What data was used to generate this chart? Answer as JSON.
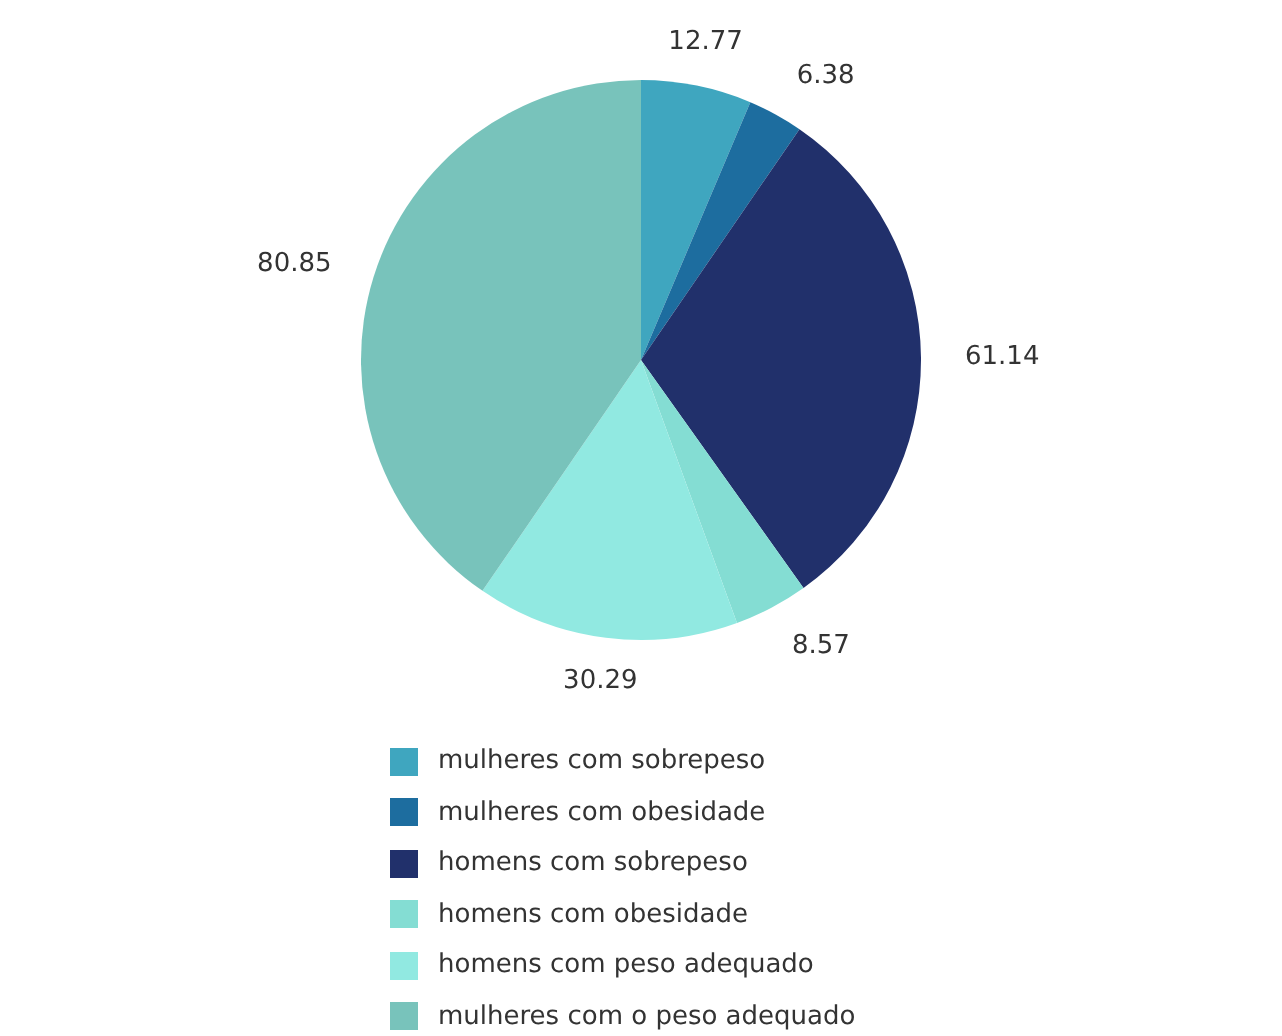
{
  "chart_data": {
    "type": "pie",
    "categories": [
      "mulheres com sobrepeso",
      "mulheres com obesidade",
      "homens com sobrepeso",
      "homens com obesidade",
      "homens com peso adequado",
      "mulheres com o peso adequado"
    ],
    "values": [
      12.77,
      6.38,
      61.14,
      8.57,
      30.29,
      80.85
    ],
    "colors": [
      "#3fa6bf",
      "#1d6d9f",
      "#21306b",
      "#84ddd3",
      "#91e9e1",
      "#78c3bb"
    ],
    "data_labels": true,
    "legend": "bottom"
  }
}
